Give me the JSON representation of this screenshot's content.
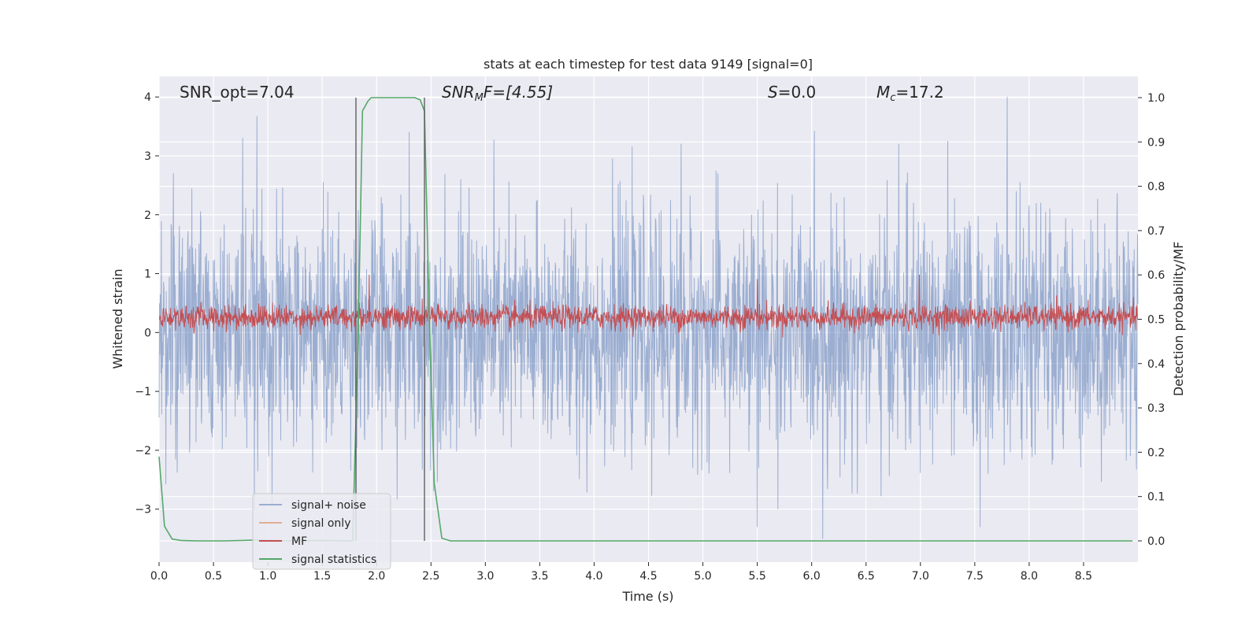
{
  "chart_data": {
    "type": "line",
    "title": "stats at each timestep for test data 9149 [signal=0]",
    "xlabel": "Time (s)",
    "ylabel": "Whitened strain",
    "ylabel_right": "Detection probability/MF",
    "xlim": [
      0.0,
      9.0
    ],
    "ylim": [
      -3.9,
      4.35
    ],
    "ylim_right": [
      -0.048,
      1.048
    ],
    "x_ticks": [
      0.0,
      0.5,
      1.0,
      1.5,
      2.0,
      2.5,
      3.0,
      3.5,
      4.0,
      4.5,
      5.0,
      5.5,
      6.0,
      6.5,
      7.0,
      7.5,
      8.0,
      8.5
    ],
    "x_tick_labels": [
      "0.0",
      "0.5",
      "1.0",
      "1.5",
      "2.0",
      "2.5",
      "3.0",
      "3.5",
      "4.0",
      "4.5",
      "5.0",
      "5.5",
      "6.0",
      "6.5",
      "7.0",
      "7.5",
      "8.0",
      "8.5"
    ],
    "y_ticks": [
      -3,
      -2,
      -1,
      0,
      1,
      2,
      3,
      4
    ],
    "y_tick_labels": [
      "−3",
      "−2",
      "−1",
      "0",
      "1",
      "2",
      "3",
      "4"
    ],
    "y_right_ticks": [
      0.0,
      0.1,
      0.2,
      0.3,
      0.4,
      0.5,
      0.6,
      0.7,
      0.8,
      0.9,
      1.0
    ],
    "y_right_tick_labels": [
      "0.0",
      "0.1",
      "0.2",
      "0.3",
      "0.4",
      "0.5",
      "0.6",
      "0.7",
      "0.8",
      "0.9",
      "1.0"
    ],
    "grid": true,
    "background": "#eaeaf2",
    "legend_position": "lower-left",
    "annotations": {
      "snr_opt": "SNR_opt=7.04",
      "snr_mf_main": "SNR",
      "snr_mf_sub": "M",
      "snr_mf_rest": "F=[4.55]",
      "s_var": "S",
      "s_rest": "=0.0",
      "mc_var": "M",
      "mc_sub": "c",
      "mc_rest": "=17.2"
    },
    "vertical_lines": [
      1.81,
      2.44
    ],
    "series": [
      {
        "name": "signal+ noise",
        "color": "#4c72b0",
        "opacity": 0.5,
        "axis": "left",
        "kind": "noise",
        "x_range": [
          0.0,
          9.0
        ],
        "typical_range": [
          -1.8,
          1.8
        ],
        "peaks": [
          [
            0.77,
            3.3
          ],
          [
            0.9,
            3.67
          ],
          [
            2.3,
            3.4
          ],
          [
            7.8,
            4.0
          ],
          [
            4.8,
            3.2
          ],
          [
            6.8,
            3.2
          ],
          [
            7.25,
            3.25
          ],
          [
            6.1,
            -3.5
          ],
          [
            5.5,
            -3.3
          ],
          [
            7.55,
            -3.3
          ]
        ]
      },
      {
        "name": "signal only",
        "color": "#dd8452",
        "opacity": 0.6,
        "axis": "left",
        "kind": "flat",
        "values": []
      },
      {
        "name": "MF",
        "color": "#c44e52",
        "axis": "right",
        "kind": "noise",
        "x_range": [
          0.0,
          9.0
        ],
        "typical_range": [
          0.475,
          0.535
        ],
        "peaks": [
          [
            1.93,
            0.6
          ],
          [
            6.99,
            0.6
          ],
          [
            2.48,
            0.59
          ],
          [
            5.5,
            0.59
          ]
        ]
      },
      {
        "name": "signal statistics",
        "color": "#55a868",
        "axis": "right",
        "kind": "line",
        "x": [
          0.0,
          0.05,
          0.12,
          0.2,
          0.35,
          0.6,
          0.9,
          1.2,
          1.5,
          1.78,
          1.83,
          1.87,
          1.92,
          1.95,
          2.0,
          2.2,
          2.35,
          2.4,
          2.44,
          2.48,
          2.53,
          2.6,
          2.68,
          3.0,
          4.0,
          5.0,
          6.0,
          7.0,
          8.0,
          8.95
        ],
        "y": [
          0.19,
          0.033,
          0.004,
          0.001,
          0.0,
          0.0,
          0.002,
          0.0,
          0.001,
          0.0,
          0.45,
          0.97,
          0.992,
          1.0,
          1.0,
          1.0,
          1.0,
          0.995,
          0.97,
          0.55,
          0.13,
          0.006,
          0.0,
          0.0,
          0.0,
          0.0,
          0.0,
          0.0,
          0.0,
          0.0
        ]
      }
    ]
  }
}
